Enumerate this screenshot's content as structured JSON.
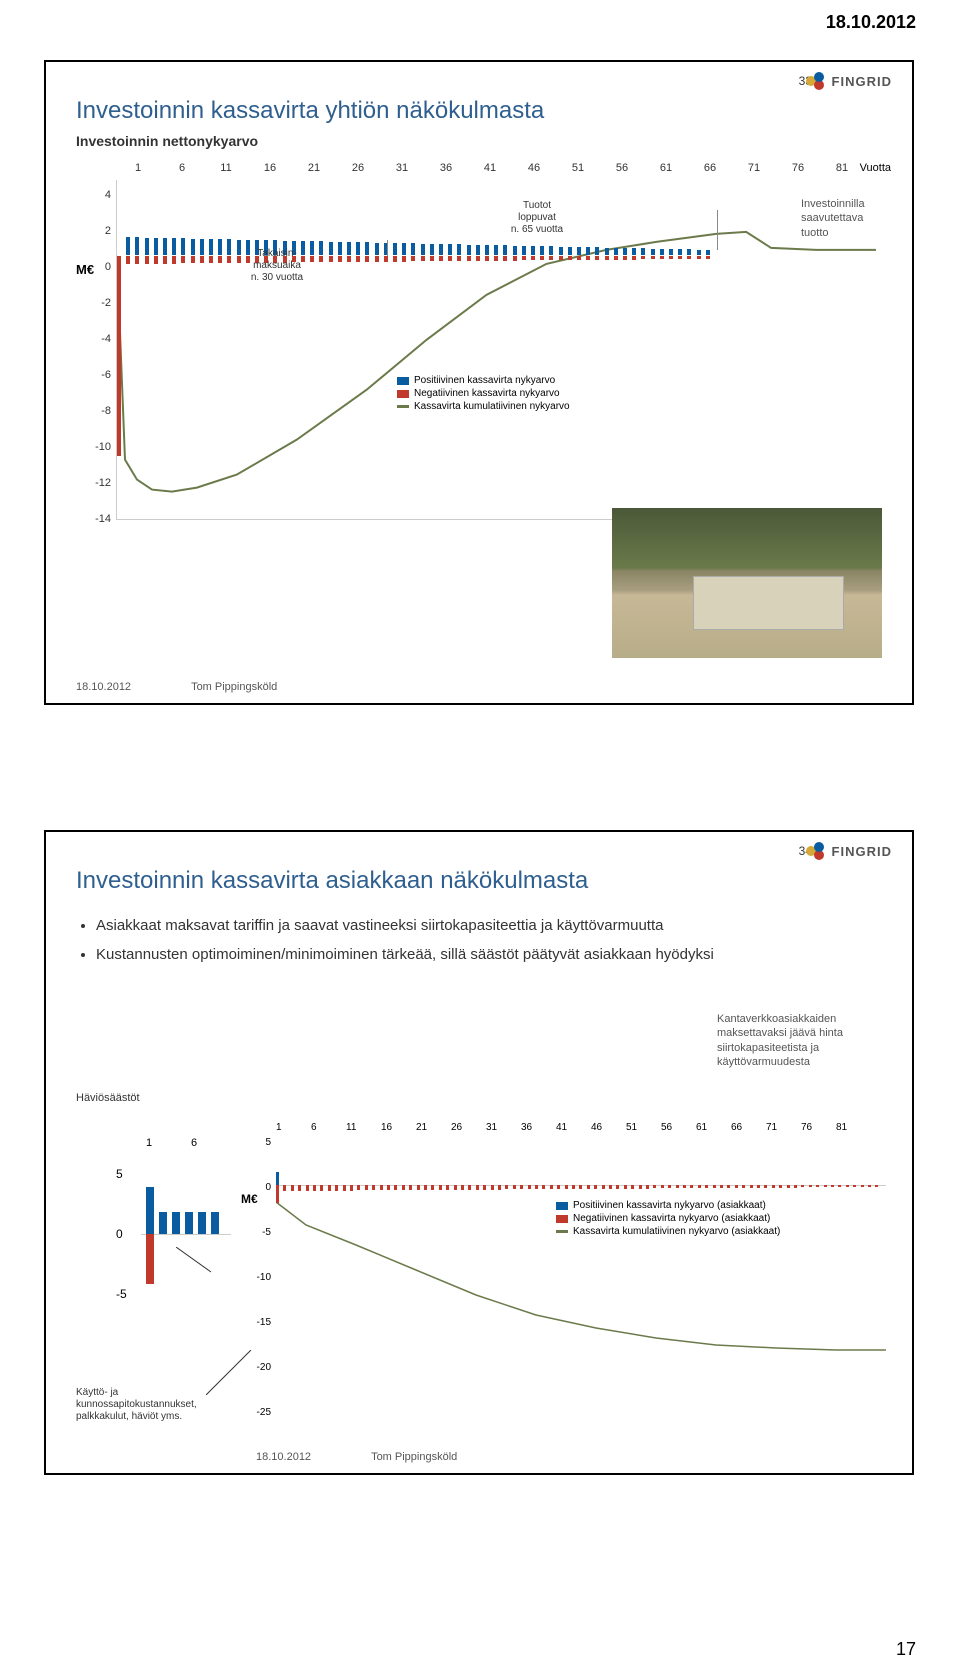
{
  "header_date": "18.10.2012",
  "page_number": "17",
  "logo_text": "FINGRID",
  "slide1": {
    "number": "33",
    "title": "Investoinnin kassavirta yhtiön näkökulmasta",
    "subtitle": "Investoinnin nettonykyarvo",
    "x_label": "Vuotta",
    "y_label": "M€",
    "x_ticks": [
      "1",
      "6",
      "11",
      "16",
      "21",
      "26",
      "31",
      "36",
      "41",
      "46",
      "51",
      "56",
      "61",
      "66",
      "71",
      "76",
      "81"
    ],
    "y_ticks": [
      "4",
      "2",
      "0",
      "-2",
      "-4",
      "-6",
      "-8",
      "-10",
      "-12",
      "-14"
    ],
    "y_min": -14,
    "y_max": 4,
    "annot1": {
      "line1": "Takaisin-",
      "line2": "maksuaika",
      "line3": "n. 30 vuotta"
    },
    "annot2": {
      "line1": "Tuotot",
      "line2": "loppuvat",
      "line3": "n. 65 vuotta"
    },
    "side_note": {
      "line1": "Investoinnilla",
      "line2": "saavutettava",
      "line3": "tuotto"
    },
    "legend": {
      "pos": "Positiivinen kassavirta nykyarvo",
      "neg": "Negatiivinen kassavirta nykyarvo",
      "cum": "Kassavirta kumulatiivinen nykyarvo"
    },
    "footer_date": "18.10.2012",
    "footer_author": "Tom Pippingsköld",
    "colors": {
      "pos": "#0a5ca0",
      "neg": "#c0392b",
      "cum": "#6b7a4a",
      "grid": "#cccccc"
    }
  },
  "slide2": {
    "number": "34",
    "title": "Investoinnin kassavirta asiakkaan näkökulmasta",
    "bullets": [
      "Asiakkaat maksavat tariffin ja saavat vastineeksi siirtokapasiteettia ja käyttövarmuutta",
      "Kustannusten optimoiminen/minimoiminen tärkeää, sillä säästöt päätyvät asiakkaan hyödyksi"
    ],
    "mini_label": "Häviösäästöt",
    "mini_x": [
      "1",
      "6"
    ],
    "mini_y": [
      "5",
      "0",
      "-5"
    ],
    "side_note": {
      "line1": "Kantaverkkoasiakkaiden",
      "line2": "maksettavaksi jäävä hinta",
      "line3": "siirtokapasiteetista ja",
      "line4": "käyttövarmuudesta"
    },
    "c2_x": [
      "1",
      "6",
      "11",
      "16",
      "21",
      "26",
      "31",
      "36",
      "41",
      "46",
      "51",
      "56",
      "61",
      "66",
      "71",
      "76",
      "81"
    ],
    "c2_y": [
      "5",
      "0",
      "-5",
      "-10",
      "-15",
      "-20",
      "-25"
    ],
    "c2_ylabel": "M€",
    "legend": {
      "pos": "Positiivinen kassavirta nykyarvo (asiakkaat)",
      "neg": "Negatiivinen kassavirta nykyarvo (asiakkaat)",
      "cum": "Kassavirta kumulatiivinen nykyarvo (asiakkaat)"
    },
    "foot_annot": {
      "line1": "Käyttö- ja",
      "line2": "kunnossapitokustannukset,",
      "line3": "palkkakulut, häviöt yms."
    },
    "footer_date": "18.10.2012",
    "footer_author": "Tom Pippingsköld"
  }
}
